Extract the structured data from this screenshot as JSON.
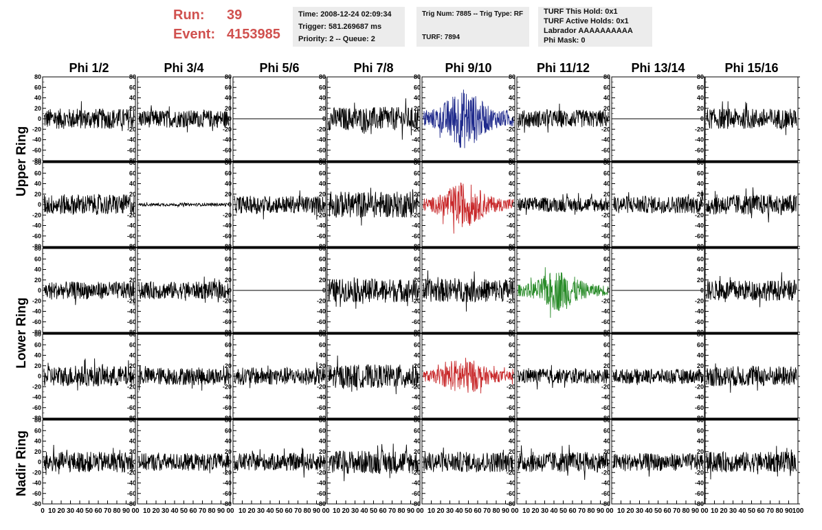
{
  "header": {
    "run_label": "Run:",
    "run_value": "39",
    "event_label": "Event:",
    "event_value": "4153985"
  },
  "info_boxes": {
    "time": "Time: 2008-12-24 02:09:34",
    "trigger": "Trigger: 581.269687 ms",
    "priority": "Priority: 2 -- Queue: 2",
    "trig_num": "Trig Num: 7885 -- Trig Type: RF",
    "turf": "TURF: 7894",
    "turf_this_hold": "TURF This Hold: 0x1",
    "turf_active_holds": "TURF Active Holds: 0x1",
    "labrador": "Labrador AAAAAAAAAA",
    "phi_mask": "Phi Mask: 0"
  },
  "colors": {
    "trace": "#000000",
    "blue": "#1f2a8c",
    "red": "#c8282a",
    "green": "#2a8c2a",
    "header_red": "#d0504e"
  },
  "chart_data": {
    "type": "line",
    "columns": [
      "Phi 1/2",
      "Phi 3/4",
      "Phi 5/6",
      "Phi 7/8",
      "Phi 9/10",
      "Phi 11/12",
      "Phi 13/14",
      "Phi 15/16"
    ],
    "ring_labels": [
      "Upper Ring",
      "Lower Ring",
      "Nadir Ring"
    ],
    "rows": 5,
    "ylim": [
      -80,
      80
    ],
    "yticks": [
      -80,
      -60,
      -40,
      -20,
      0,
      20,
      40,
      60,
      80
    ],
    "xlim": [
      0,
      100
    ],
    "xticks": [
      "0",
      "10",
      "20",
      "30",
      "40",
      "50",
      "60",
      "70",
      "80",
      "90",
      "100"
    ],
    "last_xtick": "00",
    "panel_amplitude": [
      [
        14,
        12,
        0,
        16,
        32,
        12,
        0,
        14
      ],
      [
        14,
        2,
        12,
        18,
        24,
        10,
        12,
        14
      ],
      [
        12,
        12,
        0,
        16,
        16,
        22,
        0,
        14
      ],
      [
        14,
        12,
        12,
        16,
        20,
        10,
        10,
        14
      ],
      [
        14,
        12,
        12,
        16,
        14,
        14,
        12,
        14
      ]
    ],
    "panel_color": [
      [
        "black",
        "black",
        "black",
        "black",
        "blue",
        "black",
        "black",
        "black"
      ],
      [
        "black",
        "black",
        "black",
        "black",
        "red",
        "black",
        "black",
        "black"
      ],
      [
        "black",
        "black",
        "black",
        "black",
        "black",
        "green",
        "black",
        "black"
      ],
      [
        "black",
        "black",
        "black",
        "black",
        "red",
        "black",
        "black",
        "black"
      ],
      [
        "black",
        "black",
        "black",
        "black",
        "black",
        "black",
        "black",
        "black"
      ]
    ]
  }
}
